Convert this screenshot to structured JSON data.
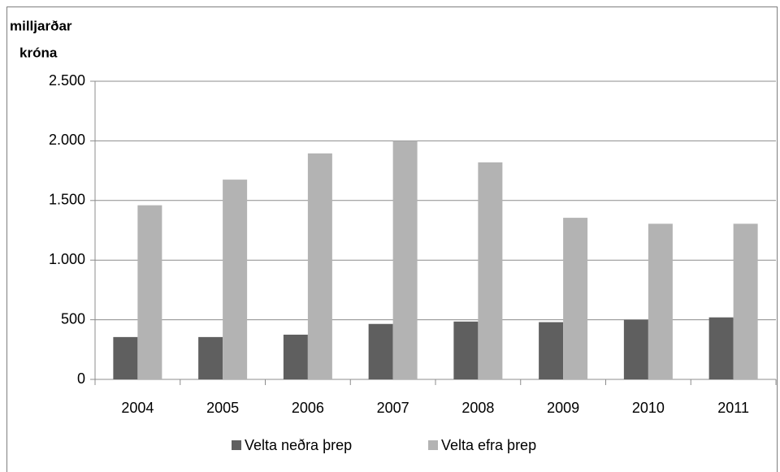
{
  "chart_data": {
    "type": "bar",
    "y_label": [
      "milljarðar",
      "króna"
    ],
    "categories": [
      "2004",
      "2005",
      "2006",
      "2007",
      "2008",
      "2009",
      "2010",
      "2011"
    ],
    "series": [
      {
        "name": "Velta neðra þrep",
        "color": "#5f5f5f",
        "values": [
          355,
          355,
          375,
          465,
          485,
          480,
          500,
          520
        ]
      },
      {
        "name": "Velta efra þrep",
        "color": "#b3b3b3",
        "values": [
          1460,
          1675,
          1895,
          2000,
          1820,
          1355,
          1305,
          1305
        ]
      }
    ],
    "ylim": [
      0,
      2500
    ],
    "yticks": [
      0,
      500,
      {
        "value": 1000,
        "label": "1.000"
      },
      {
        "value": 1500,
        "label": "1.500"
      },
      {
        "value": 2000,
        "label": "2.000"
      },
      {
        "value": 2500,
        "label": "2.500"
      }
    ],
    "grid": true,
    "legend": "bottom"
  }
}
